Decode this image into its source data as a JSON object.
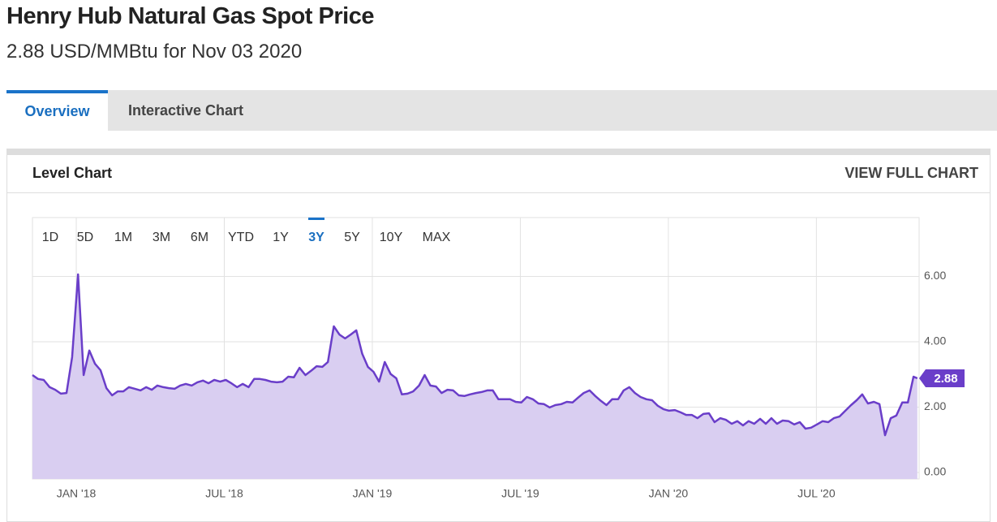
{
  "header": {
    "title": "Henry Hub Natural Gas Spot Price",
    "subtitle": "2.88 USD/MMBtu for Nov 03 2020"
  },
  "tabs": [
    "Overview",
    "Interactive Chart"
  ],
  "card": {
    "title": "Level Chart",
    "link": "VIEW FULL CHART"
  },
  "range_buttons": [
    "1D",
    "5D",
    "1M",
    "3M",
    "6M",
    "YTD",
    "1Y",
    "3Y",
    "5Y",
    "10Y",
    "MAX"
  ],
  "active_range": "3Y",
  "chart_data": {
    "type": "area",
    "x": [
      2017.852,
      2017.871,
      2017.89,
      2017.91,
      2017.929,
      2017.948,
      2017.967,
      2017.986,
      2018.006,
      2018.025,
      2018.044,
      2018.063,
      2018.082,
      2018.102,
      2018.121,
      2018.14,
      2018.159,
      2018.178,
      2018.198,
      2018.217,
      2018.236,
      2018.255,
      2018.274,
      2018.294,
      2018.313,
      2018.332,
      2018.351,
      2018.37,
      2018.39,
      2018.409,
      2018.428,
      2018.447,
      2018.466,
      2018.486,
      2018.505,
      2018.524,
      2018.543,
      2018.562,
      2018.582,
      2018.601,
      2018.62,
      2018.639,
      2018.658,
      2018.678,
      2018.697,
      2018.716,
      2018.735,
      2018.754,
      2018.774,
      2018.793,
      2018.812,
      2018.831,
      2018.85,
      2018.87,
      2018.889,
      2018.908,
      2018.927,
      2018.946,
      2018.966,
      2018.985,
      2019.004,
      2019.023,
      2019.042,
      2019.062,
      2019.081,
      2019.1,
      2019.119,
      2019.138,
      2019.158,
      2019.177,
      2019.196,
      2019.215,
      2019.234,
      2019.254,
      2019.273,
      2019.292,
      2019.311,
      2019.33,
      2019.35,
      2019.369,
      2019.388,
      2019.407,
      2019.426,
      2019.446,
      2019.465,
      2019.484,
      2019.503,
      2019.522,
      2019.542,
      2019.561,
      2019.58,
      2019.599,
      2019.618,
      2019.638,
      2019.657,
      2019.676,
      2019.695,
      2019.714,
      2019.734,
      2019.753,
      2019.772,
      2019.791,
      2019.81,
      2019.83,
      2019.849,
      2019.868,
      2019.887,
      2019.906,
      2019.926,
      2019.945,
      2019.964,
      2019.983,
      2020.002,
      2020.022,
      2020.041,
      2020.06,
      2020.079,
      2020.098,
      2020.118,
      2020.137,
      2020.156,
      2020.175,
      2020.194,
      2020.214,
      2020.233,
      2020.252,
      2020.271,
      2020.29,
      2020.31,
      2020.329,
      2020.348,
      2020.367,
      2020.386,
      2020.406,
      2020.425,
      2020.444,
      2020.463,
      2020.482,
      2020.502,
      2020.521,
      2020.54,
      2020.559,
      2020.578,
      2020.598,
      2020.617,
      2020.636,
      2020.655,
      2020.674,
      2020.694,
      2020.713,
      2020.732,
      2020.751,
      2020.77,
      2020.79,
      2020.809,
      2020.828,
      2020.841
    ],
    "series": [
      {
        "color": "#6a3ec9",
        "fill": "#d9cef1",
        "values": [
          2.98,
          2.86,
          2.83,
          2.61,
          2.53,
          2.41,
          2.43,
          3.53,
          6.06,
          2.98,
          3.73,
          3.33,
          3.13,
          2.58,
          2.36,
          2.48,
          2.48,
          2.61,
          2.56,
          2.51,
          2.61,
          2.53,
          2.66,
          2.61,
          2.58,
          2.56,
          2.66,
          2.71,
          2.66,
          2.76,
          2.81,
          2.73,
          2.83,
          2.78,
          2.83,
          2.73,
          2.61,
          2.71,
          2.61,
          2.86,
          2.86,
          2.83,
          2.78,
          2.76,
          2.78,
          2.93,
          2.91,
          3.2,
          2.98,
          3.11,
          3.25,
          3.23,
          3.38,
          4.47,
          4.22,
          4.1,
          4.22,
          4.35,
          3.63,
          3.23,
          3.08,
          2.78,
          3.38,
          3.01,
          2.88,
          2.39,
          2.41,
          2.48,
          2.66,
          2.98,
          2.66,
          2.63,
          2.43,
          2.53,
          2.51,
          2.36,
          2.34,
          2.39,
          2.43,
          2.46,
          2.51,
          2.51,
          2.24,
          2.24,
          2.24,
          2.16,
          2.14,
          2.31,
          2.24,
          2.11,
          2.09,
          1.99,
          2.06,
          2.09,
          2.16,
          2.14,
          2.29,
          2.43,
          2.51,
          2.34,
          2.19,
          2.06,
          2.24,
          2.24,
          2.51,
          2.61,
          2.43,
          2.31,
          2.24,
          2.21,
          2.04,
          1.94,
          1.89,
          1.91,
          1.84,
          1.76,
          1.76,
          1.66,
          1.79,
          1.81,
          1.54,
          1.66,
          1.61,
          1.49,
          1.57,
          1.44,
          1.57,
          1.49,
          1.64,
          1.49,
          1.66,
          1.49,
          1.59,
          1.57,
          1.47,
          1.54,
          1.34,
          1.37,
          1.47,
          1.57,
          1.54,
          1.66,
          1.71,
          1.89,
          2.06,
          2.21,
          2.39,
          2.11,
          2.16,
          2.09,
          1.14,
          1.66,
          1.74,
          2.14,
          2.14,
          2.93,
          2.88
        ]
      }
    ],
    "xlim": [
      2017.852,
      2020.847
    ],
    "xticks": [
      {
        "value": 2018,
        "label": "JAN '18"
      },
      {
        "value": 2018.5,
        "label": "JUL '18"
      },
      {
        "value": 2019,
        "label": "JAN '19"
      },
      {
        "value": 2019.5,
        "label": "JUL '19"
      },
      {
        "value": 2020,
        "label": "JAN '20"
      },
      {
        "value": 2020.5,
        "label": "JUL '20"
      }
    ],
    "ylim": [
      -0.2,
      7.8
    ],
    "yticks": [
      {
        "value": 0,
        "label": "0.00"
      },
      {
        "value": 2,
        "label": "2.00"
      },
      {
        "value": 4,
        "label": "4.00"
      },
      {
        "value": 6,
        "label": "6.00"
      }
    ],
    "grid": true
  }
}
